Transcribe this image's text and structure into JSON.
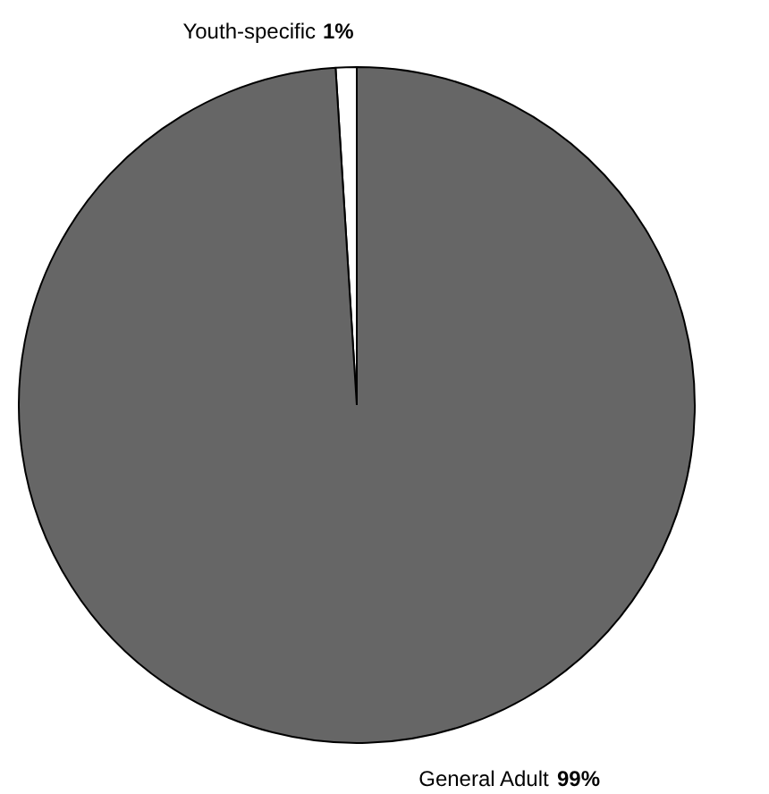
{
  "chart_data": {
    "type": "pie",
    "categories": [
      "Youth-specific",
      "General Adult"
    ],
    "values": [
      1,
      99
    ],
    "colors": [
      "#ffffff",
      "#666666"
    ],
    "value_labels": [
      "1%",
      "99%"
    ]
  }
}
